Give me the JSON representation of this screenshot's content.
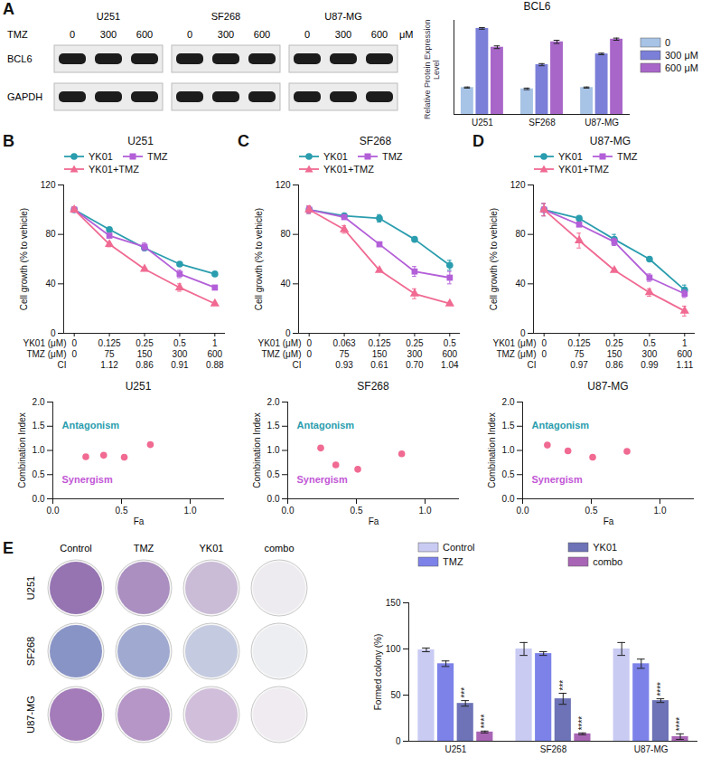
{
  "chart_data": [
    {
      "type": "bar",
      "panel": "A",
      "title": "BCL6",
      "y_label": "Relative Protein Expression Level",
      "categories": [
        "U251",
        "SF268",
        "U87-MG"
      ],
      "series": [
        {
          "name": "0",
          "color": "#a7c3e6",
          "values": [
            1.0,
            0.95,
            1.0
          ],
          "errors": [
            0.02,
            0.03,
            0.02
          ]
        },
        {
          "name": "300 μM",
          "color": "#7b7fd8",
          "values": [
            3.2,
            1.85,
            2.25
          ],
          "errors": [
            0.03,
            0.04,
            0.03
          ]
        },
        {
          "name": "600 μM",
          "color": "#a866c9",
          "values": [
            2.5,
            2.7,
            2.8
          ],
          "errors": [
            0.05,
            0.06,
            0.04
          ]
        }
      ],
      "ylim": [
        0,
        3.5
      ],
      "yticks": [],
      "tick_labels": "x",
      "legend": "right"
    },
    {
      "type": "line",
      "panel": "B",
      "title": "U251",
      "y_label": "Cell growth (% to vehicle)",
      "x_rows": [
        {
          "label": "YK01 (μM)",
          "values": [
            0,
            0.125,
            0.25,
            0.5,
            1
          ]
        },
        {
          "label": "TMZ (μM)",
          "values": [
            0,
            75,
            150,
            300,
            600
          ]
        },
        {
          "label": "CI",
          "values": [
            null,
            1.12,
            0.86,
            0.91,
            0.88
          ]
        }
      ],
      "series": [
        {
          "name": "YK01",
          "color": "#2a9dae",
          "marker": "circle",
          "values": [
            100,
            84,
            69,
            56,
            48
          ],
          "errors": [
            2,
            1,
            1,
            1,
            1
          ]
        },
        {
          "name": "TMZ",
          "color": "#b35fd8",
          "marker": "square",
          "values": [
            100,
            79,
            70,
            48,
            37
          ],
          "errors": [
            2,
            1,
            3,
            3,
            1
          ]
        },
        {
          "name": "YK01+TMZ",
          "color": "#f06a92",
          "marker": "triangle",
          "values": [
            100,
            72,
            52,
            37,
            24
          ],
          "errors": [
            2,
            2,
            1,
            3,
            1
          ]
        }
      ],
      "ylim": [
        0,
        120
      ],
      "yticks": [
        0,
        40,
        80,
        120
      ],
      "legend": "top"
    },
    {
      "type": "line",
      "panel": "C",
      "title": "SF268",
      "y_label": "Cell growth (% to vehicle)",
      "x_rows": [
        {
          "label": "YK01 (μM)",
          "values": [
            0,
            0.063,
            0.125,
            0.25,
            0.5
          ]
        },
        {
          "label": "TMZ (μM)",
          "values": [
            0,
            75,
            150,
            300,
            600
          ]
        },
        {
          "label": "CI",
          "values": [
            null,
            0.93,
            0.61,
            {
              "value": 0.7,
              "label": "0.70"
            },
            1.04
          ]
        }
      ],
      "series": [
        {
          "name": "YK01",
          "color": "#2a9dae",
          "marker": "circle",
          "values": [
            100,
            95,
            93,
            76,
            55
          ],
          "errors": [
            3,
            1,
            3,
            1,
            4
          ]
        },
        {
          "name": "TMZ",
          "color": "#b35fd8",
          "marker": "square",
          "values": [
            100,
            94,
            72,
            50,
            45
          ],
          "errors": [
            3,
            1,
            1,
            4,
            5
          ]
        },
        {
          "name": "YK01+TMZ",
          "color": "#f06a92",
          "marker": "triangle",
          "values": [
            100,
            84,
            51,
            32,
            24
          ],
          "errors": [
            3,
            3,
            1,
            4,
            1
          ]
        }
      ],
      "ylim": [
        0,
        120
      ],
      "yticks": [
        0,
        40,
        80,
        120
      ],
      "legend": "top"
    },
    {
      "type": "line",
      "panel": "D",
      "title": "U87-MG",
      "y_label": "Cell growth (% to vehicle)",
      "x_rows": [
        {
          "label": "YK01 (μM)",
          "values": [
            0,
            0.125,
            0.25,
            0.5,
            1
          ]
        },
        {
          "label": "TMZ (μM)",
          "values": [
            0,
            75,
            150,
            300,
            600
          ]
        },
        {
          "label": "CI",
          "values": [
            null,
            0.97,
            0.86,
            0.99,
            1.11
          ]
        }
      ],
      "series": [
        {
          "name": "YK01",
          "color": "#2a9dae",
          "marker": "circle",
          "values": [
            100,
            93,
            76,
            60,
            35
          ],
          "errors": [
            5,
            1,
            4,
            1,
            4
          ]
        },
        {
          "name": "TMZ",
          "color": "#b35fd8",
          "marker": "square",
          "values": [
            100,
            88,
            74,
            45,
            32
          ],
          "errors": [
            5,
            1,
            3,
            3,
            3
          ]
        },
        {
          "name": "YK01+TMZ",
          "color": "#f06a92",
          "marker": "triangle",
          "values": [
            100,
            75,
            51,
            33,
            18
          ],
          "errors": [
            5,
            6,
            1,
            3,
            4
          ]
        }
      ],
      "ylim": [
        0,
        120
      ],
      "yticks": [
        0,
        40,
        80,
        120
      ],
      "legend": "top"
    },
    {
      "type": "scatter",
      "title": "U251",
      "x_label": "Fa",
      "y_label": "Combination Index",
      "color": "#f06a92",
      "x": [
        0.24,
        0.37,
        0.52,
        0.71
      ],
      "values": [
        0.87,
        0.9,
        0.86,
        1.12
      ],
      "annotations": [
        {
          "text": "Antagonism",
          "color": "#2a9dae"
        },
        {
          "text": "Synergism",
          "color": "#c257d6"
        }
      ],
      "xlim": [
        0,
        1.25
      ],
      "xticks": [
        {
          "value": 0,
          "label": "0.0"
        },
        0.5,
        {
          "value": 1,
          "label": "1.0"
        }
      ],
      "ylim": [
        0,
        2
      ],
      "yticks": [
        {
          "value": 0,
          "label": "0.0"
        },
        0.5,
        {
          "value": 1,
          "label": "1.0"
        },
        1.5,
        {
          "value": 2,
          "label": "2.0"
        }
      ]
    },
    {
      "type": "scatter",
      "title": "SF268",
      "x_label": "Fa",
      "y_label": "Combination Index",
      "color": "#f06a92",
      "x": [
        0.24,
        0.35,
        0.51,
        0.83
      ],
      "values": [
        1.05,
        0.7,
        0.61,
        0.93
      ],
      "annotations": [
        {
          "text": "Antagonism",
          "color": "#2a9dae"
        },
        {
          "text": "Synergism",
          "color": "#c257d6"
        }
      ],
      "xlim": [
        0,
        1.25
      ],
      "xticks": [
        {
          "value": 0,
          "label": "0.0"
        },
        0.5,
        {
          "value": 1,
          "label": "1.0"
        }
      ],
      "ylim": [
        0,
        2
      ],
      "yticks": [
        {
          "value": 0,
          "label": "0.0"
        },
        0.5,
        {
          "value": 1,
          "label": "1.0"
        },
        1.5,
        {
          "value": 2,
          "label": "2.0"
        }
      ]
    },
    {
      "type": "scatter",
      "title": "U87-MG",
      "x_label": "Fa",
      "y_label": "Combination Index",
      "color": "#f06a92",
      "x": [
        0.18,
        0.33,
        0.51,
        0.76
      ],
      "values": [
        1.11,
        0.99,
        0.86,
        0.98
      ],
      "annotations": [
        {
          "text": "Antagonism",
          "color": "#2a9dae"
        },
        {
          "text": "Synergism",
          "color": "#c257d6"
        }
      ],
      "xlim": [
        0,
        1.25
      ],
      "xticks": [
        {
          "value": 0,
          "label": "0.0"
        },
        0.5,
        {
          "value": 1,
          "label": "1.0"
        }
      ],
      "ylim": [
        0,
        2
      ],
      "yticks": [
        {
          "value": 0,
          "label": "0.0"
        },
        0.5,
        {
          "value": 1,
          "label": "1.0"
        },
        1.5,
        {
          "value": 2,
          "label": "2.0"
        }
      ]
    },
    {
      "type": "bar",
      "panel": "E",
      "y_label": "Formed colony (%)",
      "categories": [
        "U251",
        "SF268",
        "U87-MG"
      ],
      "series": [
        {
          "name": "Control",
          "color": "#c9cbf3",
          "values": [
            99,
            100,
            100
          ],
          "errors": [
            2,
            7,
            7
          ]
        },
        {
          "name": "TMZ",
          "color": "#7c82e8",
          "values": [
            84,
            95,
            84
          ],
          "errors": [
            3,
            2,
            5
          ]
        },
        {
          "name": "YK01",
          "color": "#6d73b6",
          "values": [
            41,
            46,
            44
          ],
          "errors": [
            3,
            6,
            2
          ],
          "significance": [
            "***",
            "***",
            "****"
          ]
        },
        {
          "name": "combo",
          "color": "#a865b5",
          "values": [
            10,
            8,
            5
          ],
          "errors": [
            1,
            1,
            3
          ],
          "significance": [
            "****",
            "****",
            "****"
          ]
        }
      ],
      "ylim": [
        0,
        150
      ],
      "yticks": [
        0,
        50,
        100,
        150
      ],
      "legend": "top"
    }
  ],
  "blots": {
    "cell_lines": [
      "U251",
      "SF268",
      "U87-MG"
    ],
    "treatment": "TMZ",
    "doses": [
      0,
      300,
      600
    ],
    "unit": "μM",
    "proteins": [
      "BCL6",
      "GAPDH"
    ]
  },
  "colonies": {
    "groups": [
      "Control",
      "TMZ",
      "YK01",
      "combo"
    ],
    "cell_lines": [
      "U251",
      "SF268",
      "U87-MG"
    ],
    "colors": [
      "#7b4f9e",
      "#6a79b8",
      "#8d5aa8"
    ]
  }
}
